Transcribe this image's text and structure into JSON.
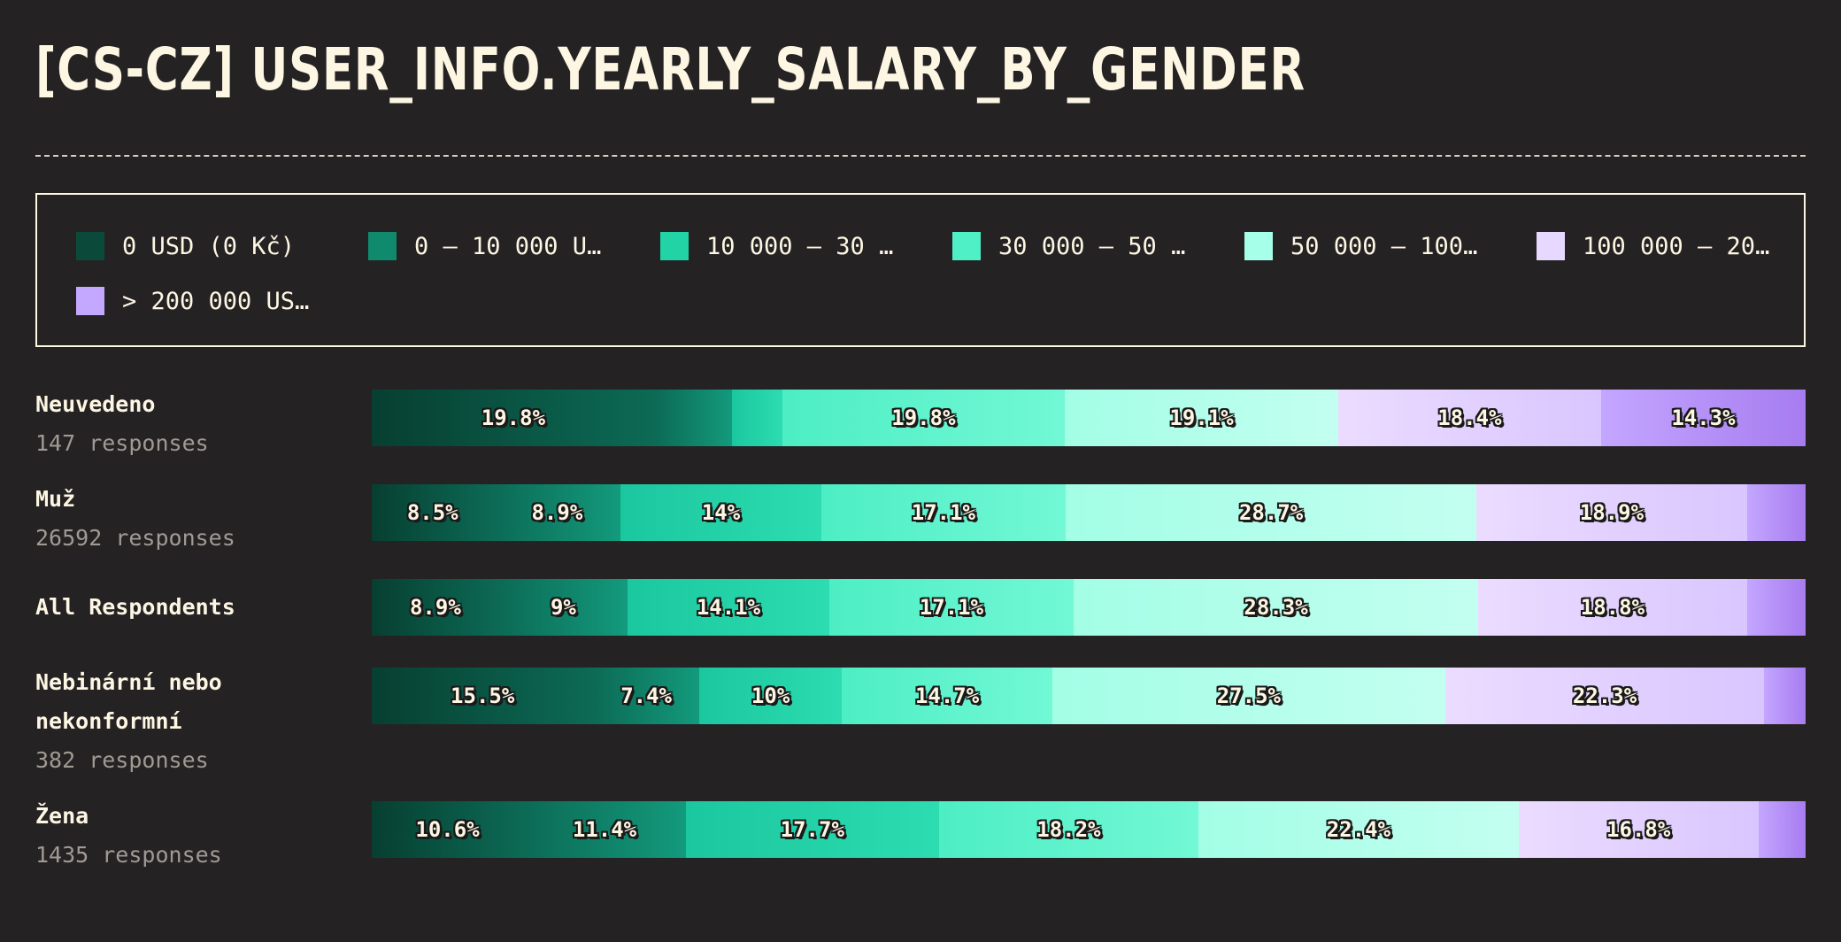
{
  "title": "[CS-CZ] USER_INFO.YEARLY_SALARY_BY_GENDER",
  "legend": [
    {
      "label": "0 USD (0 Kč)",
      "color": "#0b4a3a"
    },
    {
      "label": "0 – 10 000 U…",
      "color": "#0f8a6c"
    },
    {
      "label": "10 000 – 30 …",
      "color": "#22d3a6"
    },
    {
      "label": "30 000 – 50 …",
      "color": "#4ff0c5"
    },
    {
      "label": "50 000 – 100…",
      "color": "#a6ffe8"
    },
    {
      "label": "100 000 – 20…",
      "color": "#e7d8ff"
    },
    {
      "label": "> 200 000 US…",
      "color": "#c4a8ff"
    }
  ],
  "chart_data": {
    "type": "bar",
    "stacked": true,
    "orientation": "horizontal",
    "title": "[CS-CZ] USER_INFO.YEARLY_SALARY_BY_GENDER",
    "series_names": [
      "0 USD (0 Kč)",
      "0 – 10 000 U…",
      "10 000 – 30 …",
      "30 000 – 50 …",
      "50 000 – 100…",
      "100 000 – 20…",
      "> 200 000 US…"
    ],
    "rows": [
      {
        "name": "Neuvedeno",
        "responses": "147 responses",
        "values": [
          19.8,
          5.4,
          3.5,
          19.8,
          19.1,
          18.4,
          14.3
        ],
        "labels": [
          "19.8%",
          "",
          "",
          "19.8%",
          "19.1%",
          "18.4%",
          "14.3%"
        ]
      },
      {
        "name": "Muž",
        "responses": "26592 responses",
        "values": [
          8.5,
          8.9,
          14,
          17.1,
          28.7,
          18.9,
          4.1
        ],
        "labels": [
          "8.5%",
          "8.9%",
          "14%",
          "17.1%",
          "28.7%",
          "18.9%",
          ""
        ]
      },
      {
        "name": "All Respondents",
        "responses": "",
        "values": [
          8.9,
          9,
          14.1,
          17.1,
          28.3,
          18.8,
          4.1
        ],
        "labels": [
          "8.9%",
          "9%",
          "14.1%",
          "17.1%",
          "28.3%",
          "18.8%",
          ""
        ]
      },
      {
        "name": "Nebinární nebo nekonformní",
        "responses": "382 responses",
        "values": [
          15.5,
          7.4,
          10,
          14.7,
          27.5,
          22.3,
          2.9
        ],
        "labels": [
          "15.5%",
          "7.4%",
          "10%",
          "14.7%",
          "27.5%",
          "22.3%",
          ""
        ]
      },
      {
        "name": "Žena",
        "responses": "1435 responses",
        "values": [
          10.6,
          11.4,
          17.7,
          18.2,
          22.4,
          16.8,
          3.3
        ],
        "labels": [
          "10.6%",
          "11.4%",
          "17.7%",
          "18.2%",
          "22.4%",
          "16.8%",
          ""
        ]
      }
    ],
    "colors": [
      [
        "#073f31",
        "#0c6a55"
      ],
      [
        "#0c6a55",
        "#139a7c"
      ],
      [
        "#1bc79f",
        "#2ddcb0"
      ],
      [
        "#4deec4",
        "#72f8d5"
      ],
      [
        "#a3fee6",
        "#c3fff0"
      ],
      [
        "#ebdcff",
        "#d9c6ff"
      ],
      [
        "#c4a6ff",
        "#a77cf0"
      ]
    ]
  }
}
